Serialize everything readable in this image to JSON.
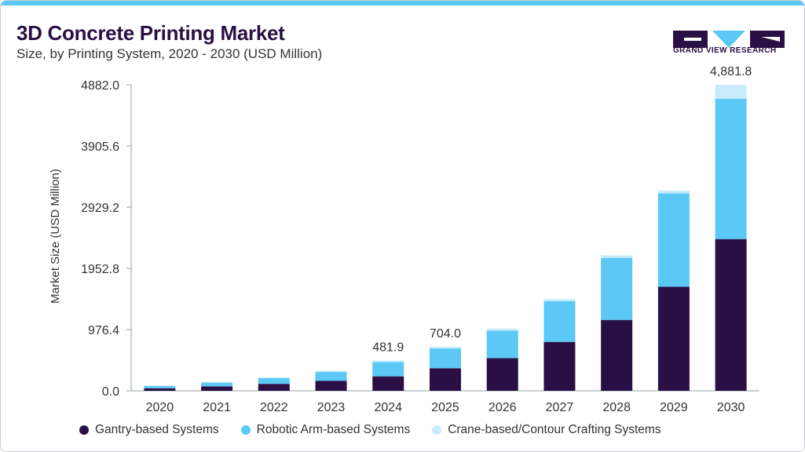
{
  "header": {
    "title": "3D Concrete Printing Market",
    "subtitle": "Size, by Printing System, 2020 - 2030 (USD Million)"
  },
  "logo": {
    "text": "GRAND VIEW RESEARCH",
    "icon": "gvr-logo-icon"
  },
  "colors": {
    "accent_bar": "#5bc8f5",
    "gantry": "#2a0f45",
    "robotic": "#5bc8f5",
    "crane": "#c8ecfb"
  },
  "chart_data": {
    "type": "bar",
    "stacked": true,
    "categories": [
      "2020",
      "2021",
      "2022",
      "2023",
      "2024",
      "2025",
      "2026",
      "2027",
      "2028",
      "2029",
      "2030"
    ],
    "series": [
      {
        "name": "Gantry-based Systems",
        "values": [
          40,
          70,
          110,
          160,
          230,
          360,
          520,
          780,
          1130,
          1660,
          2420
        ]
      },
      {
        "name": "Robotic Arm-based Systems",
        "values": [
          35,
          60,
          90,
          140,
          230,
          315,
          440,
          650,
          990,
          1490,
          2240
        ]
      },
      {
        "name": "Crane-based/Contour Crafting Systems",
        "values": [
          8,
          12,
          15,
          20,
          21.9,
          29,
          33,
          34,
          41,
          45,
          221.8
        ]
      }
    ],
    "ylabel": "Market Size (USD Million)",
    "xlabel": "",
    "ylim": [
      0,
      4882.0
    ],
    "yticks": [
      "0.0",
      "976.4",
      "1952.8",
      "2929.2",
      "3905.6",
      "4882.0"
    ],
    "total_labels": [
      {
        "category": "2024",
        "text": "481.9"
      },
      {
        "category": "2025",
        "text": "704.0"
      },
      {
        "category": "2030",
        "text": "4,881.8"
      }
    ],
    "grid": false,
    "legend_position": "bottom"
  }
}
